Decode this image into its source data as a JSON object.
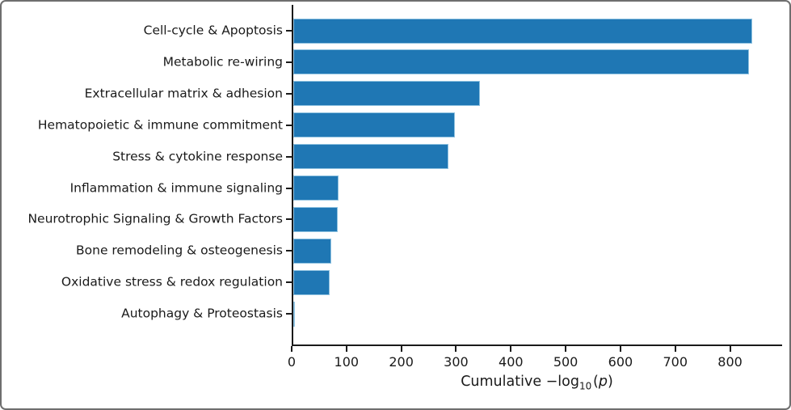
{
  "chart_data": {
    "type": "bar",
    "orientation": "horizontal",
    "title": "",
    "categories": [
      "Cell-cycle & Apoptosis",
      "Metabolic re-wiring",
      "Extracellular matrix & adhesion",
      "Hematopoietic & immune commitment",
      "Stress & cytokine response",
      "Inflammation & immune signaling",
      "Neurotrophic Signaling & Growth Factors",
      "Bone remodeling & osteogenesis",
      "Oxidative stress & redox regulation",
      "Autophagy & Proteostasis"
    ],
    "values": [
      840,
      835,
      344,
      298,
      286,
      86,
      84,
      72,
      70,
      5
    ],
    "xlabel": "Cumulative −log10(p)",
    "xlabel_parts": {
      "prefix": "Cumulative −log",
      "sub": "10",
      "open_paren": "(",
      "p_var": "p",
      "close_paren": ")"
    },
    "xlim": [
      0,
      895
    ],
    "xticks": [
      0,
      100,
      200,
      300,
      400,
      500,
      600,
      700,
      800
    ],
    "xtick_labels": [
      "0",
      "100",
      "200",
      "300",
      "400",
      "500",
      "600",
      "700",
      "800"
    ],
    "ylabel": "",
    "grid": false,
    "legend": null,
    "bar_color": "#1f77b4",
    "bar_edge_color": "#8fc2e0",
    "axis_color": "#1a1a1a"
  }
}
